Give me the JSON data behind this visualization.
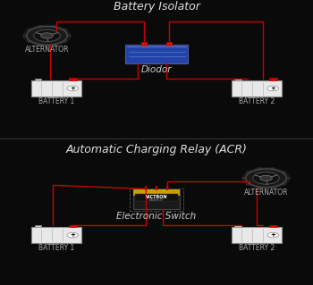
{
  "background_color": "#0a0a0a",
  "panel_bg": "#0a0a0a",
  "divider_color": "#333333",
  "wire_color": "#cc0000",
  "title1": "Battery Isolator",
  "title2": "Automatic Charging Relay (ACR)",
  "title_color": "#e0e0e0",
  "title_fontsize": 9,
  "label_color": "#aaaaaa",
  "label_fontsize": 5.5,
  "component_label_fontsize": 7.5,
  "component_label_color": "#cccccc",
  "battery1_label": "BATTERY 1",
  "battery2_label": "BATTERY 2",
  "alternator_label": "ALTERNATOR",
  "diodor_label": "Diodor",
  "electronic_switch_label": "Electronic Switch",
  "battery3_label": "BATTERY 1",
  "battery4_label": "BATTERY 2",
  "alternator2_label": "ALTERNATOR"
}
